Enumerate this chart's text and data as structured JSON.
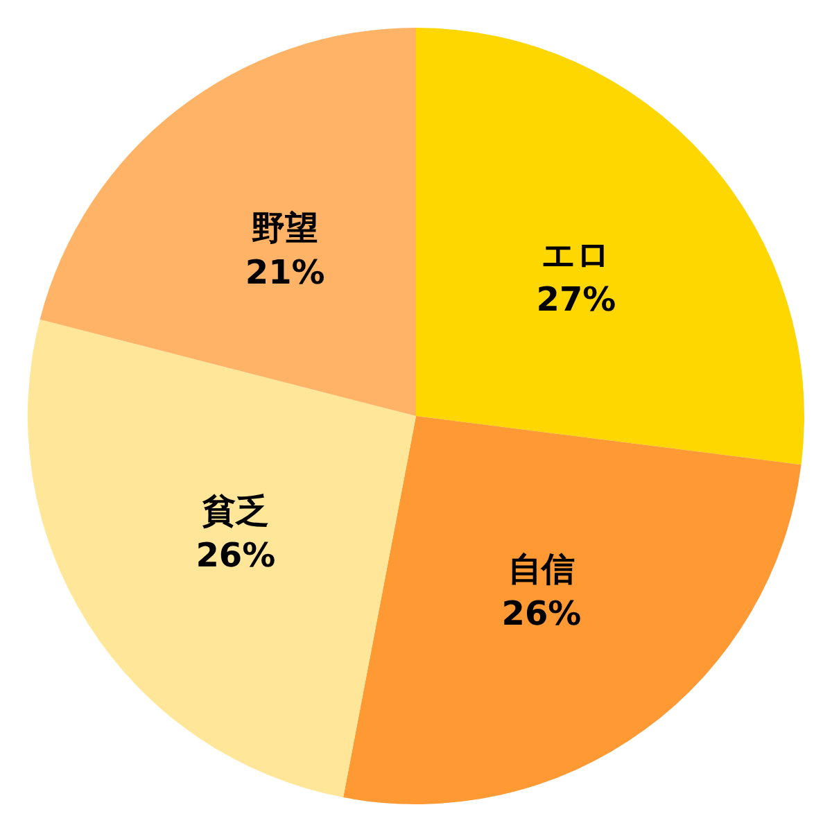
{
  "chart_data": {
    "type": "pie",
    "categories": [
      "エロ",
      "自信",
      "貧乏",
      "野望"
    ],
    "values": [
      27,
      26,
      26,
      21
    ],
    "value_labels": [
      "27%",
      "26%",
      "26%",
      "21%"
    ],
    "colors": [
      "#ffd700",
      "#ff9933",
      "#ffe699",
      "#ffb366"
    ]
  }
}
